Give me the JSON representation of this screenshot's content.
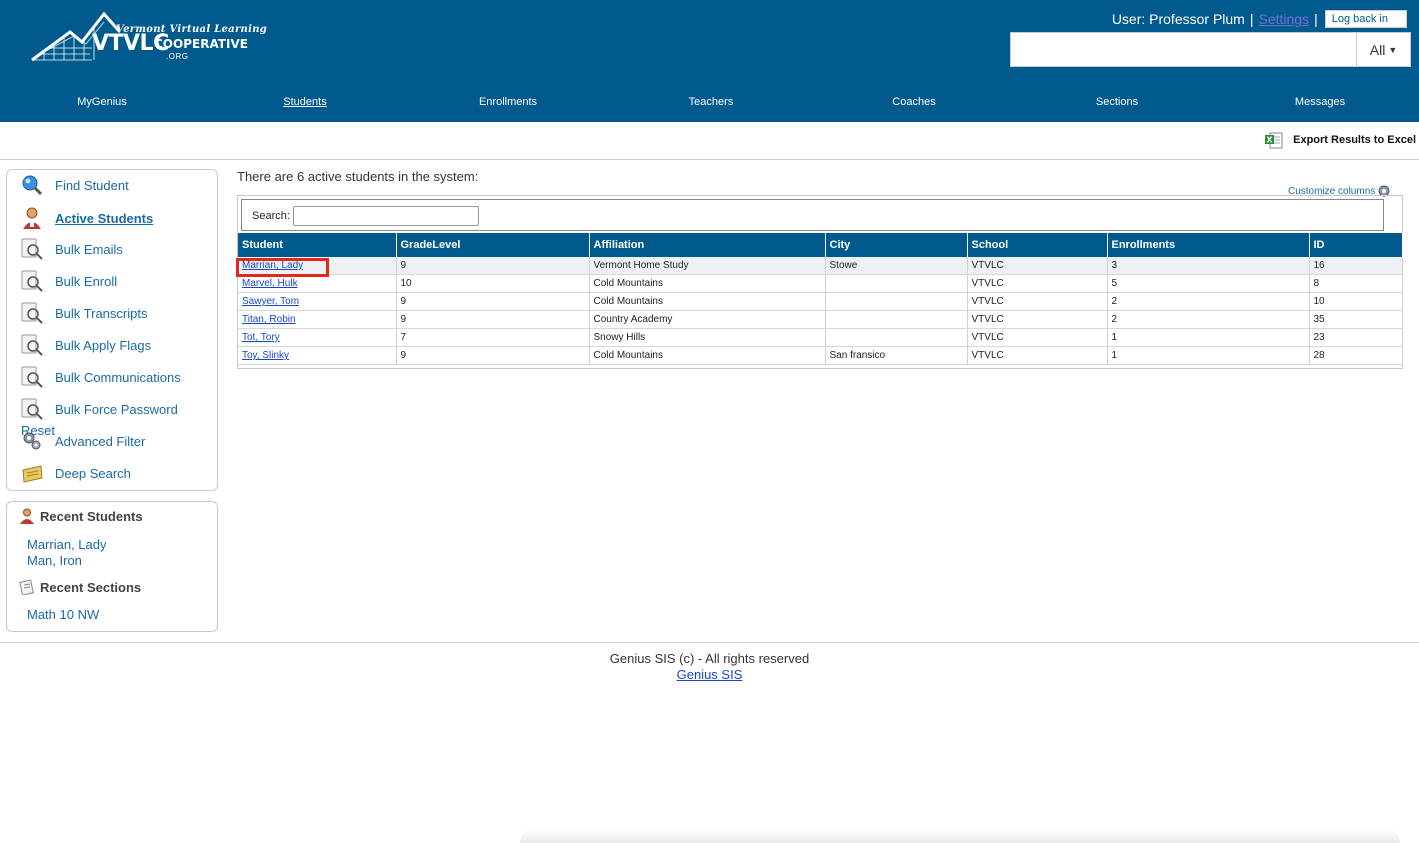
{
  "logo": {
    "top_text": "Vermont Virtual Learning",
    "main_text": "VTVLC",
    "coop_text": "COOPERATIVE",
    "org_text": ".ORG"
  },
  "userbar": {
    "user_label": "User: Professor Plum",
    "separator": "|",
    "settings_label": "Settings",
    "logback_label": "Log back in"
  },
  "global_search": {
    "value": "",
    "scope_label": "All"
  },
  "nav": {
    "items": [
      {
        "label": "MyGenius",
        "active": false
      },
      {
        "label": "Students",
        "active": true
      },
      {
        "label": "Enrollments",
        "active": false
      },
      {
        "label": "Teachers",
        "active": false
      },
      {
        "label": "Coaches",
        "active": false
      },
      {
        "label": "Sections",
        "active": false
      },
      {
        "label": "Messages",
        "active": false
      }
    ]
  },
  "toolbar": {
    "export_label": "Export Results to Excel"
  },
  "sidebar": {
    "items": [
      {
        "label": "Find Student",
        "icon": "magnifier-globe-icon"
      },
      {
        "label": "Active Students",
        "icon": "student-person-icon",
        "active": true
      },
      {
        "label": "Bulk Emails",
        "icon": "document-magnifier-icon"
      },
      {
        "label": "Bulk Enroll",
        "icon": "document-magnifier-icon"
      },
      {
        "label": "Bulk Transcripts",
        "icon": "document-magnifier-icon"
      },
      {
        "label": "Bulk Apply Flags",
        "icon": "document-magnifier-icon"
      },
      {
        "label": "Bulk Communications",
        "icon": "document-magnifier-icon"
      },
      {
        "label": "Bulk Force Password",
        "icon": "document-magnifier-icon"
      },
      {
        "label": "Advanced Filter",
        "icon": "gears-icon"
      },
      {
        "label": "Deep Search",
        "icon": "folder-search-icon"
      }
    ],
    "reset_fragment": "Reset"
  },
  "recent": {
    "students_heading": "Recent Students",
    "students": [
      "Marrian, Lady",
      "Man, Iron"
    ],
    "sections_heading": "Recent Sections",
    "sections": [
      "Math 10 NW"
    ]
  },
  "main": {
    "summary": "There are 6 active students in the system:",
    "customize_label": "Customize columns",
    "search_label": "Search:",
    "search_value": "",
    "columns": [
      "Student",
      "GradeLevel",
      "Affiliation",
      "City",
      "School",
      "Enrollments",
      "ID"
    ],
    "rows": [
      [
        "Marrian, Lady",
        "9",
        "Vermont Home Study",
        "Stowe",
        "VTVLC",
        "3",
        "16"
      ],
      [
        "Marvel, Hulk",
        "10",
        "Cold Mountains",
        "",
        "VTVLC",
        "5",
        "8"
      ],
      [
        "Sawyer, Tom",
        "9",
        "Cold Mountains",
        "",
        "VTVLC",
        "2",
        "10"
      ],
      [
        "Titan, Robin",
        "9",
        "Country Academy",
        "",
        "VTVLC",
        "2",
        "35"
      ],
      [
        "Tot, Tory",
        "7",
        "Snowy Hills",
        "",
        "VTVLC",
        "1",
        "23"
      ],
      [
        "Toy, Slinky",
        "9",
        "Cold Mountains",
        "San fransico",
        "VTVLC",
        "1",
        "28"
      ]
    ]
  },
  "footer": {
    "copyright": "Genius SIS (c) - All rights reserved",
    "link_label": "Genius SIS"
  },
  "colors": {
    "header_bg": "#005a8e",
    "link": "#1a6aa6",
    "highlight": "#e0281c"
  }
}
